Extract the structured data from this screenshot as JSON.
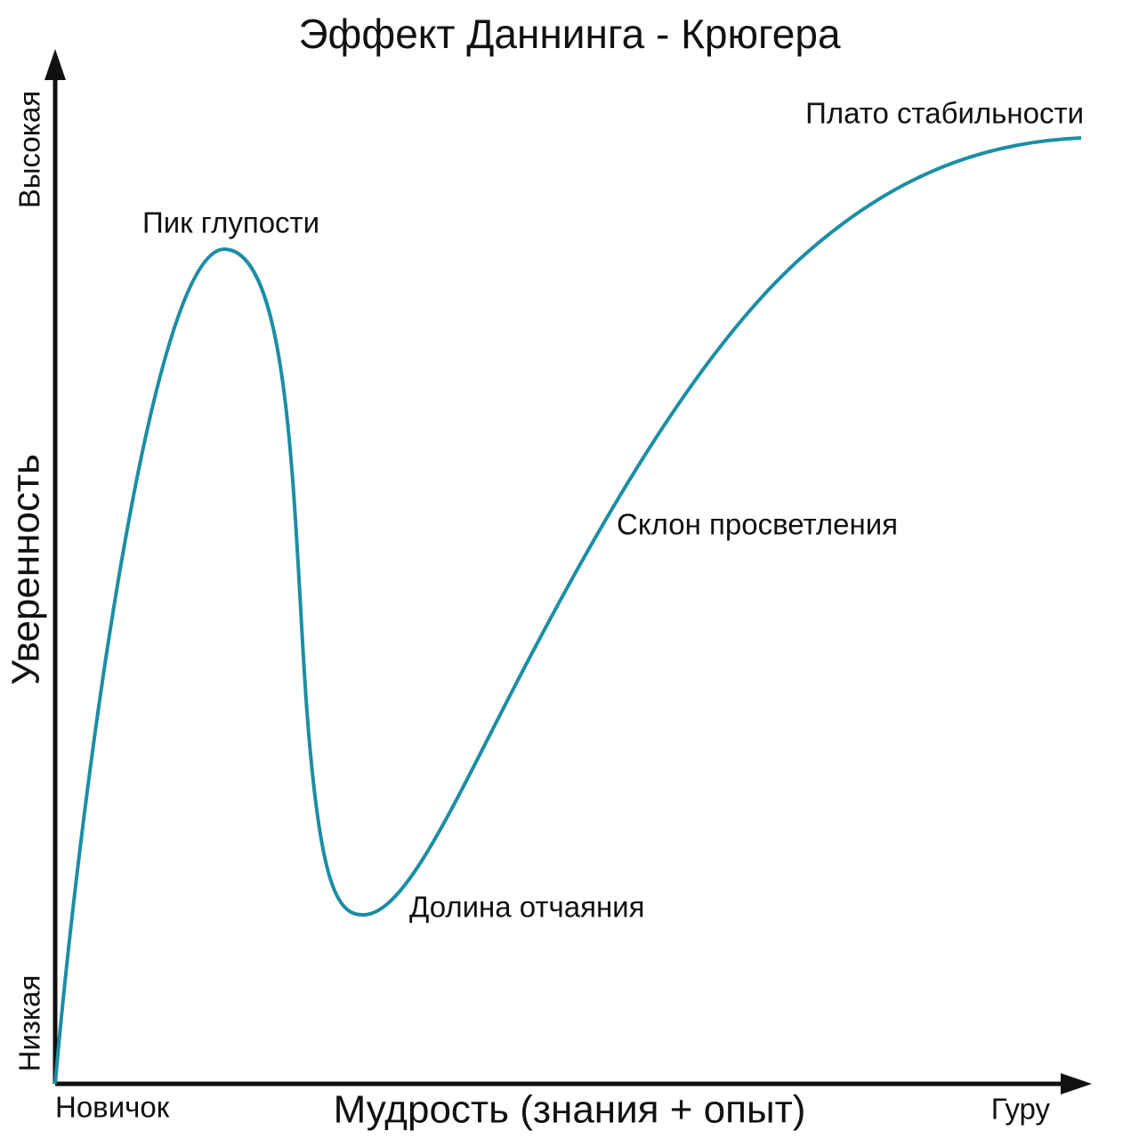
{
  "title": "Эффект Даннинга - Крюгера",
  "y_axis": {
    "label": "Уверенность",
    "low": "Низкая",
    "high": "Высокая"
  },
  "x_axis": {
    "label": "Мудрость (знания + опыт)",
    "low": "Новичок",
    "high": "Гуру"
  },
  "annotations": [
    "Пик глупости",
    "Долина отчаяния",
    "Склон просветления",
    "Плато стабильности"
  ]
}
